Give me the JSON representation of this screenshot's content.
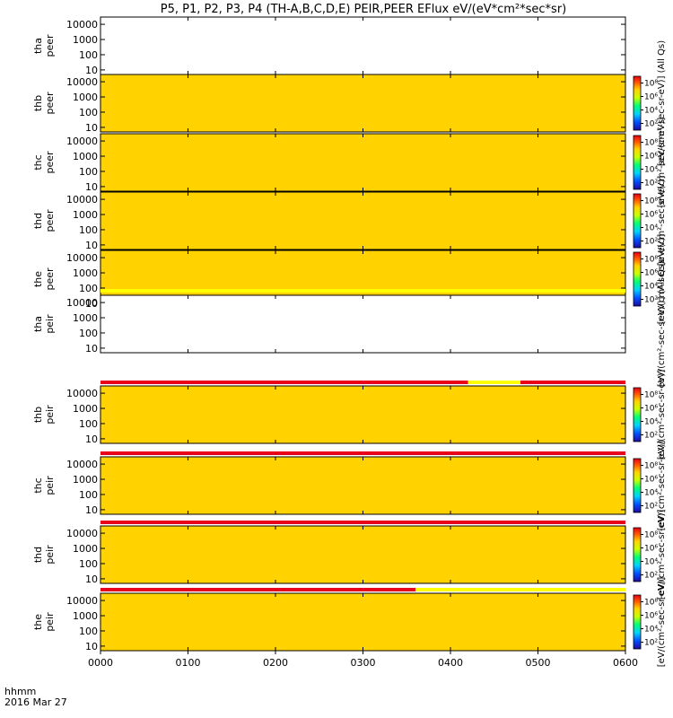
{
  "title": "P5, P1, P2, P3, P4 (TH-A,B,C,D,E) PEIR,PEER EFlux eV/(eV*cm²*sec*sr)",
  "footer": {
    "time_format": "hhmm",
    "date": "2016 Mar 27"
  },
  "colors": {
    "flag_red": "#e8001a",
    "flag_yellow": "#ffff00",
    "background": "#ffffff"
  },
  "chart_data": {
    "type": "heatmap",
    "colorbar": {
      "ticks": [
        "10⁸",
        "10⁶",
        "10⁴",
        "10²"
      ]
    },
    "x_ticks": [
      "0000",
      "0100",
      "0200",
      "0300",
      "0400",
      "0500",
      "0600"
    ],
    "x_range_hours": [
      0,
      6
    ],
    "y_ticks": [
      "10000",
      "1000",
      "100",
      "10"
    ],
    "y_range_eV": [
      5,
      30000
    ],
    "y_scale": "log",
    "panels": [
      {
        "label1": "tha",
        "label2": "peer",
        "empty": true,
        "colorbar": false,
        "cb_label": ""
      },
      {
        "label1": "thb",
        "label2": "peer",
        "empty": false,
        "colorbar": true,
        "cb_label": "[eV/(cm²-sec-sr-eV)] (All Qs)"
      },
      {
        "label1": "thc",
        "label2": "peer",
        "empty": false,
        "colorbar": true,
        "cb_label": "[eV/(cm²-sec-sr-eV)]"
      },
      {
        "label1": "thd",
        "label2": "peer",
        "empty": false,
        "colorbar": true,
        "cb_label": "[eV/(cm²-sec-sr-eV)]"
      },
      {
        "label1": "the",
        "label2": "peer",
        "empty": false,
        "colorbar": true,
        "cb_label": "[eV/(cm²-sec-sr-eV)]"
      },
      {
        "label1": "tha",
        "label2": "peir",
        "empty": true,
        "colorbar": false,
        "cb_label": "[eV/(cm²-sec-sr-eV)] (All Qs)"
      },
      {
        "label1": "thb",
        "label2": "peir",
        "empty": false,
        "colorbar": true,
        "cb_label": "[eV/(cm²-sec-sr-eV)]"
      },
      {
        "label1": "thc",
        "label2": "peir",
        "empty": false,
        "colorbar": true,
        "cb_label": "[eV/(cm²-sec-sr-eV)]"
      },
      {
        "label1": "thd",
        "label2": "peir",
        "empty": false,
        "colorbar": true,
        "cb_label": "[eV/(cm²-sec-sr-eV)]"
      },
      {
        "label1": "the",
        "label2": "peir",
        "empty": false,
        "colorbar": true,
        "cb_label": "[eV/(cm²-sec-sr-eV)]"
      }
    ]
  }
}
